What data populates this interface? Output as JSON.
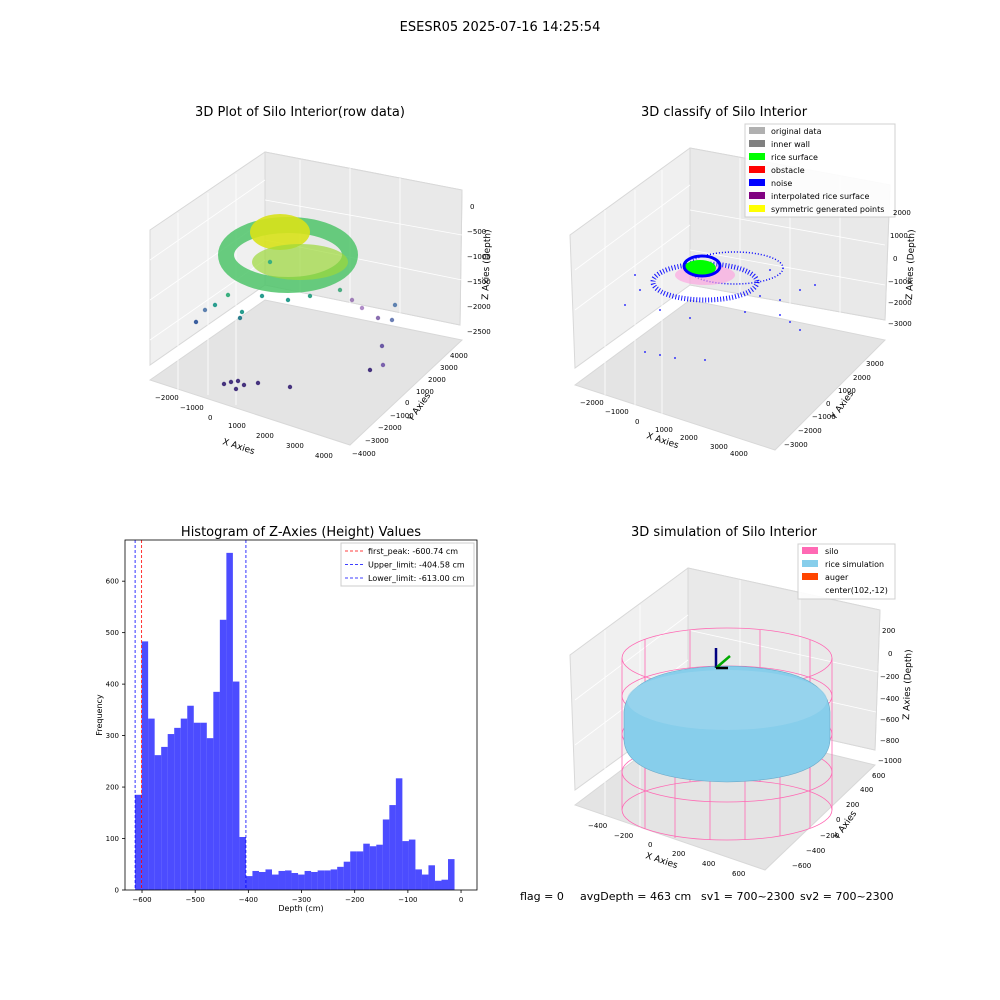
{
  "figure": {
    "suptitle": "ESESR05 2025-07-16 14:25:54",
    "status_line": {
      "flag": "flag = 0",
      "avg_depth": "avgDepth = 463 cm",
      "sv1": "sv1 = 700~2300",
      "sv2": "sv2 = 700~2300"
    }
  },
  "panels": {
    "raw": {
      "title": "3D Plot of Silo Interior(row data)",
      "xlabel": "X Axies",
      "ylabel": "Y Axies",
      "zlabel": "Z Axies (Depth)",
      "xticks": [
        "−2000",
        "−1000",
        "0",
        "1000",
        "2000",
        "3000",
        "4000"
      ],
      "yticks": [
        "4000",
        "3000",
        "2000",
        "1000",
        "0",
        "−1000",
        "−2000",
        "−3000",
        "−4000"
      ],
      "zticks": [
        "0",
        "−500",
        "−1000",
        "−1500",
        "−2000",
        "−2500"
      ]
    },
    "classify": {
      "title": "3D classify of Silo Interior",
      "xlabel": "X Axies",
      "ylabel": "Y Axies",
      "zlabel": "Z Axies (Depth)",
      "xticks": [
        "−2000",
        "−1000",
        "0",
        "1000",
        "2000",
        "3000",
        "4000"
      ],
      "yticks": [
        "3000",
        "2000",
        "1000",
        "0",
        "−1000",
        "−2000",
        "−3000"
      ],
      "zticks": [
        "2000",
        "1000",
        "0",
        "−1000",
        "−2000",
        "−3000",
        "−4000"
      ],
      "legend": [
        {
          "label": "original data",
          "color": "#b0b0b0"
        },
        {
          "label": "inner wall",
          "color": "#808080"
        },
        {
          "label": "rice surface",
          "color": "#00ff00"
        },
        {
          "label": "obstacle",
          "color": "#ff0000"
        },
        {
          "label": "noise",
          "color": "#0000ff"
        },
        {
          "label": "interpolated rice surface",
          "color": "#800080"
        },
        {
          "label": "symmetric generated points",
          "color": "#ffff00"
        }
      ]
    },
    "simulation": {
      "title": "3D simulation of Silo Interior",
      "xlabel": "X Axies",
      "ylabel": "Y Axies",
      "zlabel": "Z Axies (Depth)",
      "xticks": [
        "−400",
        "−200",
        "0",
        "200",
        "400",
        "600"
      ],
      "yticks": [
        "600",
        "400",
        "200",
        "0",
        "−200",
        "−400",
        "−600"
      ],
      "zticks": [
        "200",
        "0",
        "−200",
        "−400",
        "−600",
        "−800",
        "−1000"
      ],
      "legend": [
        {
          "label": "silo",
          "color": "#ff69b4"
        },
        {
          "label": "rice simulation",
          "color": "#87ceeb"
        },
        {
          "label": "auger",
          "color": "#ff4500"
        },
        {
          "label": "center(102,-12)",
          "color": ""
        }
      ]
    }
  },
  "chart_data": {
    "type": "bar",
    "title": "Histogram of Z-Axies (Height) Values",
    "xlabel": "Depth (cm)",
    "ylabel": "Frequency",
    "xlim": [
      -632,
      30
    ],
    "ylim": [
      0,
      680
    ],
    "xticks": [
      -600,
      -500,
      -400,
      -300,
      -200,
      -100,
      0
    ],
    "yticks": [
      0,
      100,
      200,
      300,
      400,
      500,
      600
    ],
    "bar_color": "#0000ff",
    "bin_start": -613,
    "bin_width": 12.26,
    "values": [
      185,
      483,
      333,
      262,
      278,
      303,
      315,
      333,
      358,
      325,
      325,
      295,
      385,
      525,
      655,
      405,
      103,
      27,
      37,
      35,
      40,
      30,
      37,
      38,
      33,
      30,
      37,
      35,
      38,
      38,
      40,
      45,
      55,
      75,
      75,
      90,
      85,
      88,
      137,
      165,
      217,
      95,
      98,
      40,
      30,
      48,
      18,
      20,
      60
    ],
    "vlines": [
      {
        "value": -600.74,
        "color": "#ff0000",
        "label": "first_peak: -600.74 cm"
      },
      {
        "value": -404.58,
        "color": "#0000ff",
        "label": "Upper_limit: -404.58 cm"
      },
      {
        "value": -613.0,
        "color": "#0000ff",
        "label": "Lower_limit: -613.00 cm"
      }
    ],
    "legend_position": "top-right",
    "grid": false
  }
}
